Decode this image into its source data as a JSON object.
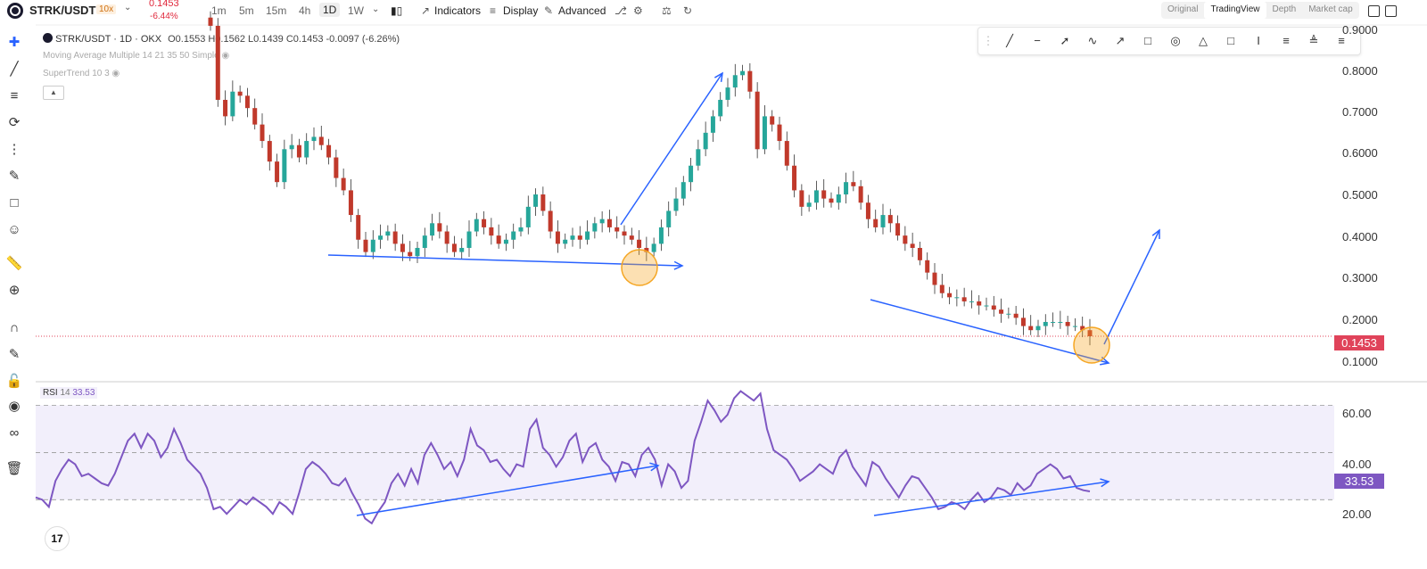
{
  "header": {
    "symbol": "STRK/USDT",
    "leverage": "10x",
    "last_price": "0.1453",
    "change_pct": "-6.44%",
    "timeframes": [
      "1m",
      "5m",
      "15m",
      "4h",
      "1D",
      "1W"
    ],
    "active_timeframe": "1D",
    "indicators_label": "Indicators",
    "display_label": "Display",
    "advanced_label": "Advanced",
    "views": [
      "Original",
      "TradingView",
      "Depth",
      "Market cap"
    ],
    "active_view": "TradingView"
  },
  "legend": {
    "title": "STRK/USDT · 1D · OKX",
    "open": "O0.1553",
    "high": "H0.1562",
    "low": "L0.1439",
    "close": "C0.1453",
    "change": "-0.0097 (-6.26%)",
    "ma": "Moving Average Multiple 14 21 35 50 Simple",
    "supertrend": "SuperTrend 10 3"
  },
  "rsi": {
    "label": "RSI",
    "period": "14",
    "value": "33.53"
  },
  "colors": {
    "up": "#26a69a",
    "down": "#c0392b",
    "rsi": "#7e57c2",
    "trendline": "#2962ff",
    "highlight": "#f5a623",
    "price_badge": "#e0435a"
  },
  "chart_data": [
    {
      "type": "candlestick",
      "title": "STRK/USDT · 1D · OKX",
      "ylim": [
        0.0,
        0.85
      ],
      "yticks": [
        0.1,
        0.2,
        0.3,
        0.4,
        0.5,
        0.6,
        0.7,
        0.8
      ],
      "ytick_labels": [
        "0.1000",
        "0.2000",
        "0.3000",
        "0.4000",
        "0.5000",
        "0.6000",
        "0.7000",
        "0.8000"
      ],
      "current_price": 0.1453,
      "close_series": [
        0.9,
        0.72,
        0.68,
        0.74,
        0.73,
        0.7,
        0.66,
        0.62,
        0.57,
        0.52,
        0.6,
        0.61,
        0.58,
        0.62,
        0.63,
        0.61,
        0.58,
        0.53,
        0.5,
        0.44,
        0.38,
        0.35,
        0.38,
        0.39,
        0.4,
        0.37,
        0.35,
        0.34,
        0.36,
        0.39,
        0.42,
        0.4,
        0.37,
        0.35,
        0.36,
        0.4,
        0.43,
        0.41,
        0.39,
        0.37,
        0.38,
        0.4,
        0.41,
        0.46,
        0.49,
        0.45,
        0.4,
        0.37,
        0.38,
        0.39,
        0.38,
        0.4,
        0.42,
        0.43,
        0.41,
        0.4,
        0.39,
        0.38,
        0.36,
        0.35,
        0.37,
        0.41,
        0.45,
        0.48,
        0.52,
        0.56,
        0.6,
        0.64,
        0.68,
        0.72,
        0.75,
        0.78,
        0.79,
        0.74,
        0.6,
        0.68,
        0.66,
        0.62,
        0.56,
        0.5,
        0.46,
        0.47,
        0.5,
        0.48,
        0.47,
        0.49,
        0.52,
        0.51,
        0.47,
        0.43,
        0.41,
        0.44,
        0.42,
        0.39,
        0.37,
        0.36,
        0.33,
        0.3,
        0.27,
        0.25,
        0.24,
        0.24,
        0.23,
        0.23,
        0.22,
        0.22,
        0.21,
        0.2,
        0.2,
        0.19,
        0.17,
        0.16,
        0.17,
        0.18,
        0.18,
        0.18,
        0.17,
        0.17,
        0.16,
        0.1453
      ],
      "annotations": [
        "support trendline (first range)",
        "breakout arrow",
        "support trendline (second range)",
        "projected breakout arrow"
      ]
    },
    {
      "type": "line",
      "title": "RSI 14",
      "ylim": [
        15,
        77
      ],
      "yticks": [
        20,
        40,
        60
      ],
      "ytick_labels": [
        "20.00",
        "40.00",
        "60.00"
      ],
      "bands": [
        30,
        50,
        70
      ],
      "series": [
        {
          "name": "RSI",
          "values": [
            31,
            30,
            27,
            38,
            43,
            47,
            45,
            40,
            41,
            39,
            37,
            36,
            41,
            48,
            55,
            58,
            52,
            58,
            55,
            48,
            52,
            60,
            54,
            47,
            44,
            41,
            35,
            26,
            27,
            24,
            27,
            30,
            28,
            31,
            29,
            27,
            24,
            29,
            27,
            24,
            33,
            43,
            46,
            44,
            41,
            37,
            36,
            39,
            33,
            28,
            22,
            20,
            25,
            29,
            37,
            41,
            36,
            43,
            37,
            49,
            54,
            49,
            43,
            46,
            40,
            47,
            60,
            53,
            51,
            46,
            47,
            43,
            40,
            45,
            44,
            60,
            64,
            52,
            49,
            44,
            48,
            55,
            58,
            46,
            52,
            54,
            47,
            44,
            38,
            46,
            45,
            40,
            49,
            52,
            47,
            36,
            45,
            42,
            35,
            38,
            55,
            63,
            72,
            68,
            63,
            66,
            73,
            76,
            74,
            72,
            75,
            60,
            51,
            49,
            47,
            43,
            38,
            40,
            42,
            45,
            43,
            41,
            48,
            51,
            44,
            40,
            36,
            46,
            44,
            39,
            35,
            31,
            36,
            40,
            39,
            35,
            31,
            26,
            27,
            29,
            28,
            26,
            30,
            33,
            29,
            31,
            35,
            34,
            32,
            37,
            34,
            36,
            41,
            43,
            45,
            43,
            39,
            40,
            35,
            34,
            33.53
          ]
        }
      ],
      "annotations": [
        "bullish divergence trendline (first range)",
        "bullish divergence trendline (second range)"
      ]
    }
  ]
}
